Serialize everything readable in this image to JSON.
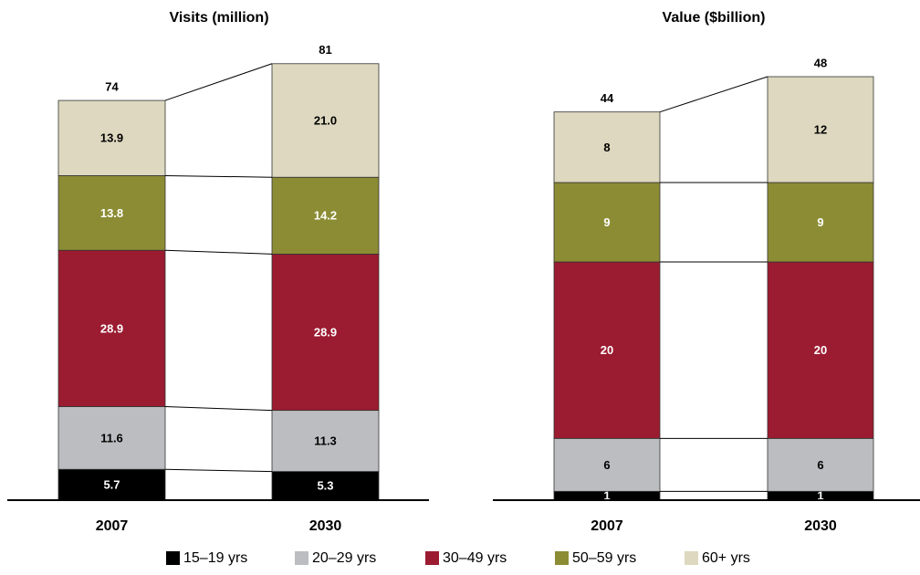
{
  "chart_data": [
    {
      "type": "stacked-bar",
      "title": "Visits (million)",
      "categories": [
        "2007",
        "2030"
      ],
      "totals": [
        74,
        81
      ],
      "series": [
        {
          "name": "15–19 yrs",
          "color": "#000000",
          "label_color": "#ffffff",
          "values": [
            5.7,
            5.3
          ]
        },
        {
          "name": "20–29 yrs",
          "color": "#bcbdc0",
          "label_color": "#000000",
          "values": [
            11.6,
            11.3
          ]
        },
        {
          "name": "30–49 yrs",
          "color": "#9b1b30",
          "label_color": "#ffffff",
          "values": [
            28.9,
            28.9
          ]
        },
        {
          "name": "50–59 yrs",
          "color": "#8c8c35",
          "label_color": "#ffffff",
          "values": [
            13.8,
            14.2
          ]
        },
        {
          "name": "60+ yrs",
          "color": "#ddd8bf",
          "label_color": "#000000",
          "values": [
            13.9,
            21.0
          ],
          "value_labels": [
            "13.9",
            "21.0"
          ]
        }
      ]
    },
    {
      "type": "stacked-bar",
      "title": "Value ($billion)",
      "categories": [
        "2007",
        "2030"
      ],
      "totals": [
        44,
        48
      ],
      "series": [
        {
          "name": "15–19 yrs",
          "color": "#000000",
          "label_color": "#ffffff",
          "values": [
            1,
            1
          ]
        },
        {
          "name": "20–29 yrs",
          "color": "#bcbdc0",
          "label_color": "#000000",
          "values": [
            6,
            6
          ]
        },
        {
          "name": "30–49 yrs",
          "color": "#9b1b30",
          "label_color": "#ffffff",
          "values": [
            20,
            20
          ]
        },
        {
          "name": "50–59 yrs",
          "color": "#8c8c35",
          "label_color": "#ffffff",
          "values": [
            9,
            9
          ]
        },
        {
          "name": "60+ yrs",
          "color": "#ddd8bf",
          "label_color": "#000000",
          "values": [
            8,
            12
          ]
        }
      ]
    }
  ]
}
